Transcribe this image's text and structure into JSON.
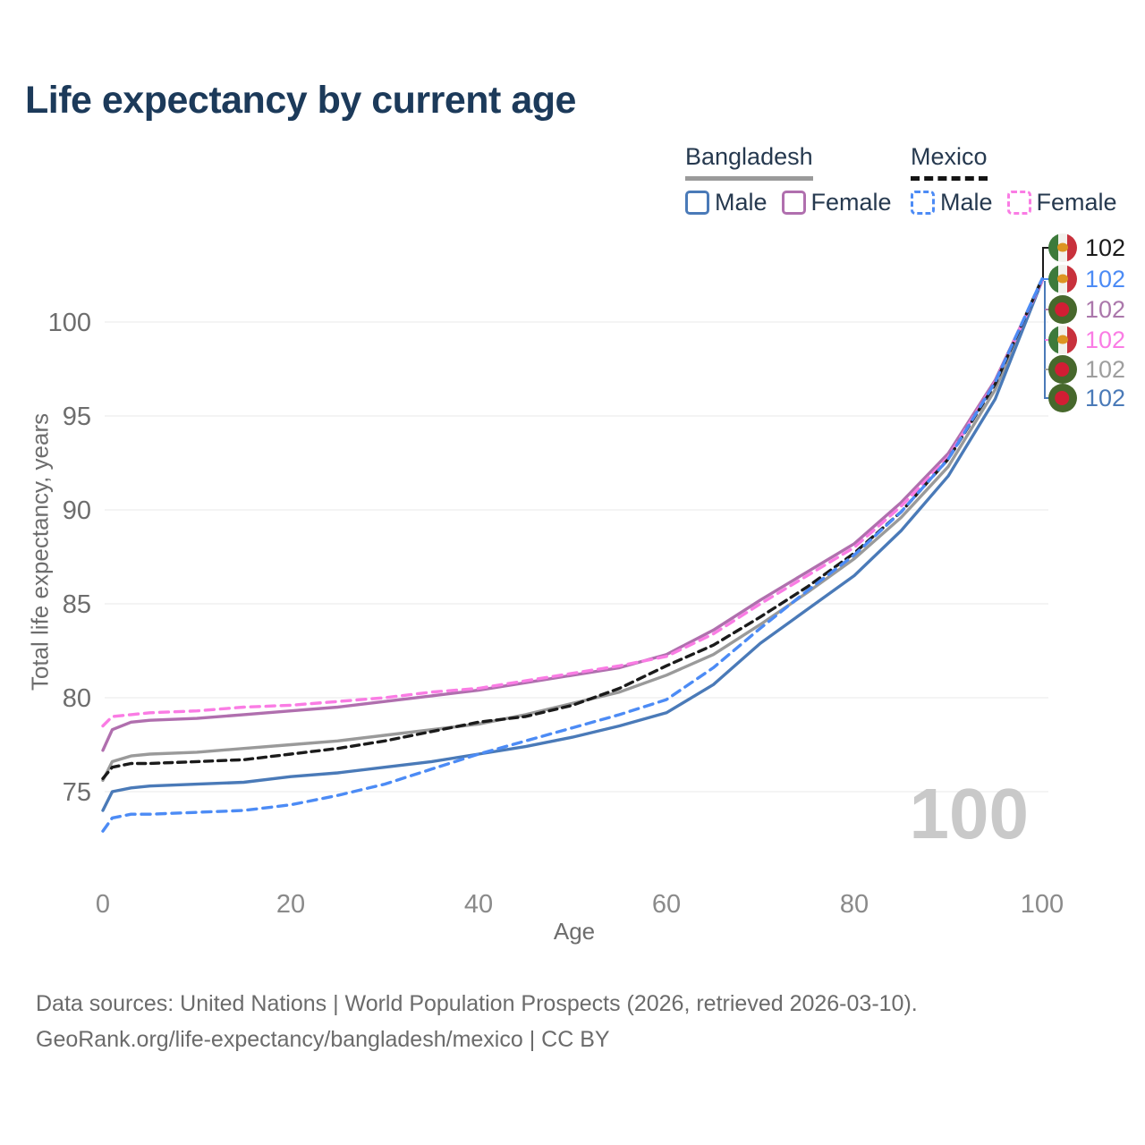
{
  "title": "Life expectancy by current age",
  "legend": {
    "groups": [
      {
        "label": "Bangladesh",
        "line_style": "solid",
        "underline_color": "#9a9a9a",
        "items": [
          {
            "label": "Male",
            "color": "#4a7ab8",
            "dash": false
          },
          {
            "label": "Female",
            "color": "#b06fae",
            "dash": false
          }
        ]
      },
      {
        "label": "Mexico",
        "line_style": "dashed",
        "underline_color": "#141414",
        "items": [
          {
            "label": "Male",
            "color": "#4c8bf5",
            "dash": true
          },
          {
            "label": "Female",
            "color": "#fa7ce4",
            "dash": true
          }
        ]
      }
    ]
  },
  "axes": {
    "x": {
      "label": "Age",
      "ticks": [
        0,
        20,
        40,
        60,
        80,
        100
      ]
    },
    "y": {
      "label": "Total life expectancy, years",
      "ticks": [
        75,
        80,
        85,
        90,
        95,
        100
      ]
    }
  },
  "end_labels": [
    {
      "flag": "mexico",
      "series": "Mexico Total",
      "value": "102",
      "color": "#1b1b1b"
    },
    {
      "flag": "mexico",
      "series": "Mexico Male",
      "value": "102",
      "color": "#4c8bf5"
    },
    {
      "flag": "bangladesh",
      "series": "Bangladesh Female",
      "value": "102",
      "color": "#ab77ab"
    },
    {
      "flag": "mexico",
      "series": "Mexico Female",
      "value": "102",
      "color": "#fa7ce4"
    },
    {
      "flag": "bangladesh",
      "series": "Bangladesh Total",
      "value": "102",
      "color": "#9e9e9e"
    },
    {
      "flag": "bangladesh",
      "series": "Bangladesh Male",
      "value": "102",
      "color": "#4a7ab8"
    }
  ],
  "watermark": "100",
  "footer": {
    "line1": "Data sources: United Nations | World Population Prospects (2026, retrieved 2026-03-10).",
    "line2": "GeoRank.org/life-expectancy/bangladesh/mexico | CC BY"
  },
  "chart_data": {
    "type": "line",
    "title": "Life expectancy by current age",
    "xlabel": "Age",
    "ylabel": "Total life expectancy, years",
    "xlim": [
      0,
      100
    ],
    "ylim": [
      72.5,
      103
    ],
    "grid": "horizontal",
    "legend_position": "top-right",
    "series": [
      {
        "id": "bd_total",
        "name": "Bangladesh Total",
        "country": "Bangladesh",
        "sex": "Both",
        "color": "#9a9a9a",
        "dash": false,
        "points": [
          [
            0,
            75.6
          ],
          [
            1,
            76.6
          ],
          [
            3,
            76.9
          ],
          [
            5,
            77.0
          ],
          [
            10,
            77.1
          ],
          [
            15,
            77.3
          ],
          [
            20,
            77.5
          ],
          [
            25,
            77.7
          ],
          [
            30,
            78.0
          ],
          [
            35,
            78.3
          ],
          [
            40,
            78.6
          ],
          [
            45,
            79.1
          ],
          [
            50,
            79.7
          ],
          [
            55,
            80.3
          ],
          [
            60,
            81.2
          ],
          [
            65,
            82.3
          ],
          [
            70,
            83.9
          ],
          [
            75,
            85.6
          ],
          [
            80,
            87.4
          ],
          [
            85,
            89.6
          ],
          [
            90,
            92.3
          ],
          [
            95,
            96.4
          ],
          [
            100,
            102.2
          ]
        ]
      },
      {
        "id": "bd_female",
        "name": "Bangladesh Female",
        "country": "Bangladesh",
        "sex": "Female",
        "color": "#b06fae",
        "dash": false,
        "points": [
          [
            0,
            77.2
          ],
          [
            1,
            78.3
          ],
          [
            3,
            78.7
          ],
          [
            5,
            78.8
          ],
          [
            10,
            78.9
          ],
          [
            15,
            79.1
          ],
          [
            20,
            79.3
          ],
          [
            25,
            79.5
          ],
          [
            30,
            79.8
          ],
          [
            35,
            80.1
          ],
          [
            40,
            80.4
          ],
          [
            45,
            80.8
          ],
          [
            50,
            81.2
          ],
          [
            55,
            81.6
          ],
          [
            60,
            82.3
          ],
          [
            65,
            83.6
          ],
          [
            70,
            85.2
          ],
          [
            75,
            86.7
          ],
          [
            80,
            88.2
          ],
          [
            85,
            90.4
          ],
          [
            90,
            93.0
          ],
          [
            95,
            96.9
          ],
          [
            100,
            102.2
          ]
        ]
      },
      {
        "id": "bd_male",
        "name": "Bangladesh Male",
        "country": "Bangladesh",
        "sex": "Male",
        "color": "#4a7ab8",
        "dash": false,
        "points": [
          [
            0,
            74.0
          ],
          [
            1,
            75.0
          ],
          [
            3,
            75.2
          ],
          [
            5,
            75.3
          ],
          [
            10,
            75.4
          ],
          [
            15,
            75.5
          ],
          [
            20,
            75.8
          ],
          [
            25,
            76.0
          ],
          [
            30,
            76.3
          ],
          [
            35,
            76.6
          ],
          [
            40,
            77.0
          ],
          [
            45,
            77.4
          ],
          [
            50,
            77.9
          ],
          [
            55,
            78.5
          ],
          [
            60,
            79.2
          ],
          [
            65,
            80.7
          ],
          [
            70,
            82.9
          ],
          [
            75,
            84.7
          ],
          [
            80,
            86.5
          ],
          [
            85,
            88.9
          ],
          [
            90,
            91.8
          ],
          [
            95,
            95.9
          ],
          [
            100,
            102.2
          ]
        ]
      },
      {
        "id": "mx_female",
        "name": "Mexico Female",
        "country": "Mexico",
        "sex": "Female",
        "color": "#fa7ce4",
        "dash": true,
        "points": [
          [
            0,
            78.5
          ],
          [
            1,
            79.0
          ],
          [
            3,
            79.1
          ],
          [
            5,
            79.2
          ],
          [
            10,
            79.3
          ],
          [
            15,
            79.5
          ],
          [
            20,
            79.6
          ],
          [
            25,
            79.8
          ],
          [
            30,
            80.0
          ],
          [
            35,
            80.3
          ],
          [
            40,
            80.5
          ],
          [
            45,
            80.9
          ],
          [
            50,
            81.3
          ],
          [
            55,
            81.7
          ],
          [
            60,
            82.2
          ],
          [
            65,
            83.4
          ],
          [
            70,
            85.0
          ],
          [
            75,
            86.5
          ],
          [
            80,
            88.0
          ],
          [
            85,
            90.2
          ],
          [
            90,
            92.8
          ],
          [
            95,
            96.8
          ],
          [
            100,
            102.2
          ]
        ]
      },
      {
        "id": "mx_total",
        "name": "Mexico Total",
        "country": "Mexico",
        "sex": "Both",
        "color": "#1b1b1b",
        "dash": true,
        "points": [
          [
            0,
            75.7
          ],
          [
            1,
            76.3
          ],
          [
            3,
            76.5
          ],
          [
            5,
            76.5
          ],
          [
            10,
            76.6
          ],
          [
            15,
            76.7
          ],
          [
            20,
            77.0
          ],
          [
            25,
            77.3
          ],
          [
            30,
            77.7
          ],
          [
            35,
            78.2
          ],
          [
            40,
            78.7
          ],
          [
            45,
            79.0
          ],
          [
            50,
            79.6
          ],
          [
            55,
            80.5
          ],
          [
            60,
            81.7
          ],
          [
            65,
            82.8
          ],
          [
            70,
            84.3
          ],
          [
            75,
            85.9
          ],
          [
            80,
            87.7
          ],
          [
            85,
            89.9
          ],
          [
            90,
            92.7
          ],
          [
            95,
            96.7
          ],
          [
            100,
            102.3
          ]
        ]
      },
      {
        "id": "mx_male",
        "name": "Mexico Male",
        "country": "Mexico",
        "sex": "Male",
        "color": "#4c8bf5",
        "dash": true,
        "points": [
          [
            0,
            72.9
          ],
          [
            1,
            73.6
          ],
          [
            3,
            73.8
          ],
          [
            5,
            73.8
          ],
          [
            10,
            73.9
          ],
          [
            15,
            74.0
          ],
          [
            20,
            74.3
          ],
          [
            25,
            74.8
          ],
          [
            30,
            75.4
          ],
          [
            35,
            76.2
          ],
          [
            40,
            77.0
          ],
          [
            45,
            77.7
          ],
          [
            50,
            78.4
          ],
          [
            55,
            79.1
          ],
          [
            60,
            79.9
          ],
          [
            65,
            81.6
          ],
          [
            70,
            83.7
          ],
          [
            75,
            85.7
          ],
          [
            80,
            87.6
          ],
          [
            85,
            89.9
          ],
          [
            90,
            92.7
          ],
          [
            95,
            96.8
          ],
          [
            100,
            102.3
          ]
        ]
      }
    ]
  }
}
